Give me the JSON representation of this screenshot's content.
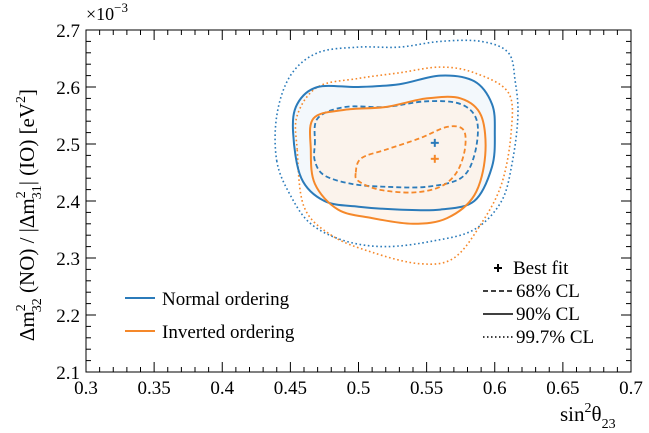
{
  "chart_data": {
    "type": "contour",
    "xlabel": {
      "base": "sin",
      "sup": "2",
      "theta": "θ",
      "sub": "23"
    },
    "ylabel": {
      "delta": "Δm",
      "sup1": "2",
      "sub1": "32",
      "mid": " (NO) / |Δm",
      "sup2": "2",
      "sub2": "31",
      "tail": "| (IO) [eV",
      "sup3": "2",
      "close": "]"
    },
    "y_multiplier": {
      "base": "×10",
      "exp": "−3"
    },
    "xlim": [
      0.3,
      0.7
    ],
    "ylim": [
      2.1,
      2.7
    ],
    "x_ticks": [
      0.3,
      0.35,
      0.4,
      0.45,
      0.5,
      0.55,
      0.6,
      0.65,
      0.7
    ],
    "x_tick_labels": [
      "0.3",
      "0.35",
      "0.4",
      "0.45",
      "0.5",
      "0.55",
      "0.6",
      "0.65",
      "0.7"
    ],
    "y_ticks": [
      2.1,
      2.2,
      2.3,
      2.4,
      2.5,
      2.6,
      2.7
    ],
    "y_tick_labels": [
      "2.1",
      "2.2",
      "2.3",
      "2.4",
      "2.5",
      "2.6",
      "2.7"
    ],
    "legend_orderings": [
      {
        "label": "Normal ordering",
        "color": "#2b7bba"
      },
      {
        "label": "Inverted ordering",
        "color": "#f5882a"
      }
    ],
    "legend_styles": [
      {
        "label": "Best fit",
        "marker": "cross"
      },
      {
        "label": "68% CL",
        "dash": "dashed"
      },
      {
        "label": "90% CL",
        "dash": "solid"
      },
      {
        "label": "99.7% CL",
        "dash": "dotted"
      }
    ],
    "best_fit": {
      "normal": {
        "x": 0.556,
        "y": 2.502
      },
      "inverted": {
        "x": 0.556,
        "y": 2.474
      }
    },
    "contours": {
      "normal": {
        "color": "#2b7bba",
        "fill": "#eef5fb",
        "cl99": [
          [
            0.44,
            2.47
          ],
          [
            0.44,
            2.55
          ],
          [
            0.45,
            2.62
          ],
          [
            0.47,
            2.66
          ],
          [
            0.5,
            2.67
          ],
          [
            0.53,
            2.67
          ],
          [
            0.56,
            2.68
          ],
          [
            0.59,
            2.68
          ],
          [
            0.61,
            2.66
          ],
          [
            0.615,
            2.61
          ],
          [
            0.617,
            2.55
          ],
          [
            0.613,
            2.47
          ],
          [
            0.605,
            2.4
          ],
          [
            0.585,
            2.35
          ],
          [
            0.555,
            2.33
          ],
          [
            0.52,
            2.32
          ],
          [
            0.49,
            2.33
          ],
          [
            0.465,
            2.36
          ],
          [
            0.45,
            2.41
          ]
        ],
        "cl90": [
          [
            0.452,
            2.52
          ],
          [
            0.455,
            2.57
          ],
          [
            0.47,
            2.6
          ],
          [
            0.5,
            2.6
          ],
          [
            0.53,
            2.605
          ],
          [
            0.56,
            2.62
          ],
          [
            0.585,
            2.61
          ],
          [
            0.598,
            2.57
          ],
          [
            0.6,
            2.52
          ],
          [
            0.598,
            2.46
          ],
          [
            0.585,
            2.4
          ],
          [
            0.56,
            2.385
          ],
          [
            0.53,
            2.385
          ],
          [
            0.5,
            2.39
          ],
          [
            0.475,
            2.4
          ],
          [
            0.458,
            2.44
          ]
        ],
        "cl68": [
          [
            0.468,
            2.5
          ],
          [
            0.47,
            2.545
          ],
          [
            0.49,
            2.565
          ],
          [
            0.52,
            2.565
          ],
          [
            0.55,
            2.575
          ],
          [
            0.575,
            2.57
          ],
          [
            0.587,
            2.54
          ],
          [
            0.585,
            2.48
          ],
          [
            0.575,
            2.44
          ],
          [
            0.55,
            2.425
          ],
          [
            0.52,
            2.425
          ],
          [
            0.495,
            2.43
          ],
          [
            0.475,
            2.445
          ],
          [
            0.468,
            2.47
          ]
        ]
      },
      "inverted": {
        "color": "#f5882a",
        "fill": "#fdf1e6",
        "cl99": [
          [
            0.455,
            2.49
          ],
          [
            0.455,
            2.55
          ],
          [
            0.47,
            2.6
          ],
          [
            0.5,
            2.615
          ],
          [
            0.53,
            2.625
          ],
          [
            0.56,
            2.635
          ],
          [
            0.585,
            2.625
          ],
          [
            0.61,
            2.59
          ],
          [
            0.612,
            2.52
          ],
          [
            0.605,
            2.43
          ],
          [
            0.59,
            2.36
          ],
          [
            0.57,
            2.3
          ],
          [
            0.545,
            2.29
          ],
          [
            0.51,
            2.31
          ],
          [
            0.48,
            2.34
          ],
          [
            0.46,
            2.39
          ]
        ],
        "cl90": [
          [
            0.465,
            2.49
          ],
          [
            0.467,
            2.545
          ],
          [
            0.49,
            2.56
          ],
          [
            0.52,
            2.565
          ],
          [
            0.55,
            2.58
          ],
          [
            0.575,
            2.58
          ],
          [
            0.59,
            2.55
          ],
          [
            0.593,
            2.48
          ],
          [
            0.585,
            2.41
          ],
          [
            0.565,
            2.37
          ],
          [
            0.54,
            2.36
          ],
          [
            0.51,
            2.37
          ],
          [
            0.485,
            2.385
          ],
          [
            0.468,
            2.43
          ]
        ],
        "cl68": [
          [
            0.498,
            2.45
          ],
          [
            0.502,
            2.475
          ],
          [
            0.52,
            2.49
          ],
          [
            0.545,
            2.51
          ],
          [
            0.565,
            2.53
          ],
          [
            0.577,
            2.525
          ],
          [
            0.578,
            2.49
          ],
          [
            0.572,
            2.45
          ],
          [
            0.56,
            2.425
          ],
          [
            0.54,
            2.415
          ],
          [
            0.515,
            2.42
          ],
          [
            0.5,
            2.435
          ]
        ]
      }
    }
  }
}
